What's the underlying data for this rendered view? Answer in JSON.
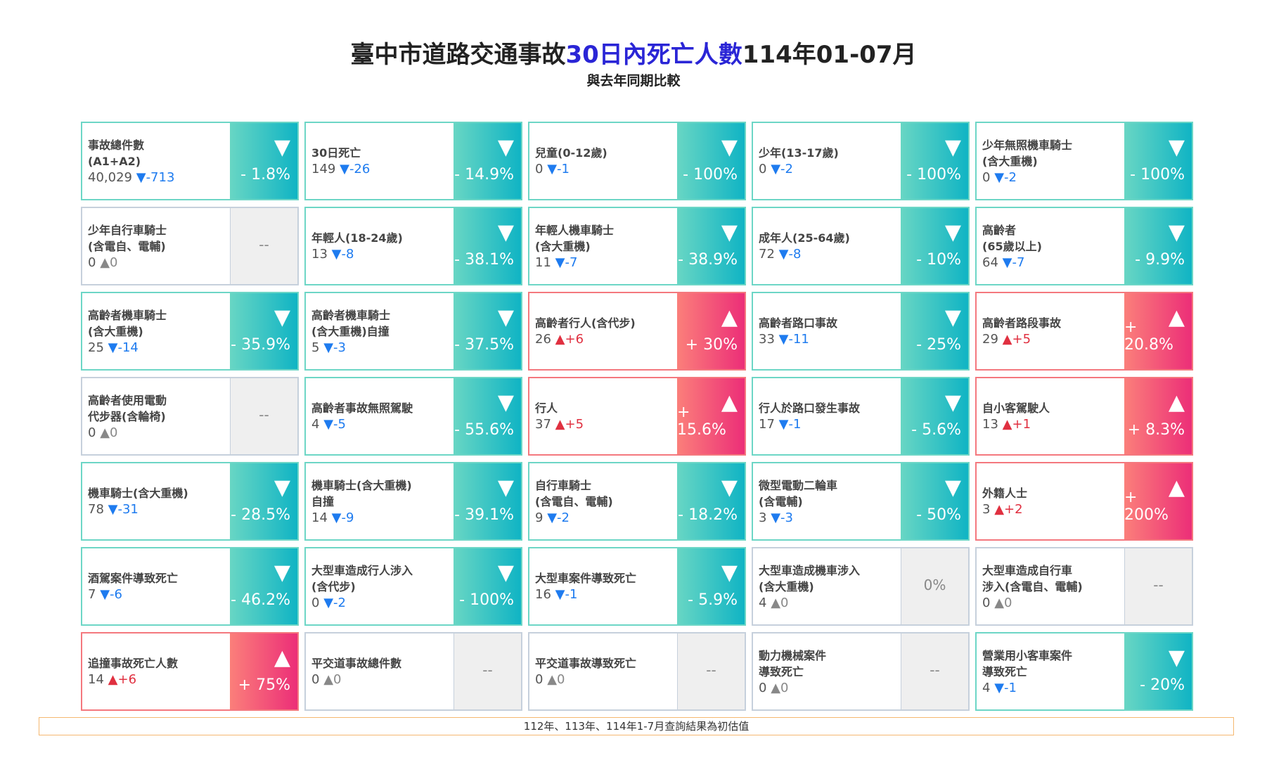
{
  "header": {
    "title_a": "臺中市道路交通事故",
    "title_b": "30日內死亡人數",
    "title_c": "114年01-07月",
    "subtitle": "與去年同期比較"
  },
  "colors": {
    "down": "#10b4c4",
    "up": "#ec2e78",
    "none": "#efefef",
    "highlight": "#2a25d6"
  },
  "cards": [
    {
      "label": "事故總件數",
      "label2": "(A1+A2)",
      "value": "40,029",
      "dir": "down",
      "change": "-713",
      "pct": "- 1.8%"
    },
    {
      "label": "30日死亡",
      "label2": "",
      "value": "149",
      "dir": "down",
      "change": "-26",
      "pct": "- 14.9%"
    },
    {
      "label": "兒童(0-12歲)",
      "label2": "",
      "value": "0",
      "dir": "down",
      "change": "-1",
      "pct": "- 100%"
    },
    {
      "label": "少年(13-17歲)",
      "label2": "",
      "value": "0",
      "dir": "down",
      "change": "-2",
      "pct": "- 100%"
    },
    {
      "label": "少年無照機車騎士",
      "label2": "(含大重機)",
      "value": "0",
      "dir": "down",
      "change": "-2",
      "pct": "- 100%"
    },
    {
      "label": "少年自行車騎士",
      "label2": "(含電自、電輔)",
      "value": "0",
      "dir": "none",
      "change": "0",
      "pct": "--"
    },
    {
      "label": "年輕人(18-24歲)",
      "label2": "",
      "value": "13",
      "dir": "down",
      "change": "-8",
      "pct": "- 38.1%"
    },
    {
      "label": "年輕人機車騎士",
      "label2": "(含大重機)",
      "value": "11",
      "dir": "down",
      "change": "-7",
      "pct": "- 38.9%"
    },
    {
      "label": "成年人(25-64歲)",
      "label2": "",
      "value": "72",
      "dir": "down",
      "change": "-8",
      "pct": "- 10%"
    },
    {
      "label": "高齡者",
      "label2": "(65歲以上)",
      "value": "64",
      "dir": "down",
      "change": "-7",
      "pct": "- 9.9%"
    },
    {
      "label": "高齡者機車騎士",
      "label2": "(含大重機)",
      "value": "25",
      "dir": "down",
      "change": "-14",
      "pct": "- 35.9%"
    },
    {
      "label": "高齡者機車騎士",
      "label2": "(含大重機)自撞",
      "value": "5",
      "dir": "down",
      "change": "-3",
      "pct": "- 37.5%"
    },
    {
      "label": "高齡者行人(含代步)",
      "label2": "",
      "value": "26",
      "dir": "up",
      "change": "+6",
      "pct": "+ 30%"
    },
    {
      "label": "高齡者路口事故",
      "label2": "",
      "value": "33",
      "dir": "down",
      "change": "-11",
      "pct": "- 25%"
    },
    {
      "label": "高齡者路段事故",
      "label2": "",
      "value": "29",
      "dir": "up",
      "change": "+5",
      "pct": "+ 20.8%"
    },
    {
      "label": "高齡者使用電動",
      "label2": "代步器(含輪椅)",
      "value": "0",
      "dir": "none",
      "change": "0",
      "pct": "--"
    },
    {
      "label": "高齡者事故無照駕駛",
      "label2": "",
      "value": "4",
      "dir": "down",
      "change": "-5",
      "pct": "- 55.6%"
    },
    {
      "label": "行人",
      "label2": "",
      "value": "37",
      "dir": "up",
      "change": "+5",
      "pct": "+ 15.6%"
    },
    {
      "label": "行人於路口發生事故",
      "label2": "",
      "value": "17",
      "dir": "down",
      "change": "-1",
      "pct": "- 5.6%"
    },
    {
      "label": "自小客駕駛人",
      "label2": "",
      "value": "13",
      "dir": "up",
      "change": "+1",
      "pct": "+ 8.3%"
    },
    {
      "label": "機車騎士(含大重機)",
      "label2": "",
      "value": "78",
      "dir": "down",
      "change": "-31",
      "pct": "- 28.5%"
    },
    {
      "label": "機車騎士(含大重機)",
      "label2": "自撞",
      "value": "14",
      "dir": "down",
      "change": "-9",
      "pct": "- 39.1%"
    },
    {
      "label": "自行車騎士",
      "label2": "(含電自、電輔)",
      "value": "9",
      "dir": "down",
      "change": "-2",
      "pct": "- 18.2%"
    },
    {
      "label": "微型電動二輪車",
      "label2": "(含電輔)",
      "value": "3",
      "dir": "down",
      "change": "-3",
      "pct": "- 50%"
    },
    {
      "label": "外籍人士",
      "label2": "",
      "value": "3",
      "dir": "up",
      "change": "+2",
      "pct": "+ 200%"
    },
    {
      "label": "酒駕案件導致死亡",
      "label2": "",
      "value": "7",
      "dir": "down",
      "change": "-6",
      "pct": "- 46.2%"
    },
    {
      "label": "大型車造成行人涉入",
      "label2": "(含代步)",
      "value": "0",
      "dir": "down",
      "change": "-2",
      "pct": "- 100%"
    },
    {
      "label": "大型車案件導致死亡",
      "label2": "",
      "value": "16",
      "dir": "down",
      "change": "-1",
      "pct": "- 5.9%"
    },
    {
      "label": "大型車造成機車涉入",
      "label2": "(含大重機)",
      "value": "4",
      "dir": "none",
      "change": "0",
      "pct": "0%"
    },
    {
      "label": "大型車造成自行車",
      "label2": "涉入(含電自、電輔)",
      "value": "0",
      "dir": "none",
      "change": "0",
      "pct": "--"
    },
    {
      "label": "追撞事故死亡人數",
      "label2": "",
      "value": "14",
      "dir": "up",
      "change": "+6",
      "pct": "+ 75%"
    },
    {
      "label": "平交道事故總件數",
      "label2": "",
      "value": "0",
      "dir": "none",
      "change": "0",
      "pct": "--"
    },
    {
      "label": "平交道事故導致死亡",
      "label2": "",
      "value": "0",
      "dir": "none",
      "change": "0",
      "pct": "--"
    },
    {
      "label": "動力機械案件",
      "label2": "導致死亡",
      "value": "0",
      "dir": "none",
      "change": "0",
      "pct": "--"
    },
    {
      "label": "營業用小客車案件",
      "label2": "導致死亡",
      "value": "4",
      "dir": "down",
      "change": "-1",
      "pct": "- 20%"
    }
  ],
  "footer": "112年、113年、114年1-7月查詢結果為初估值"
}
